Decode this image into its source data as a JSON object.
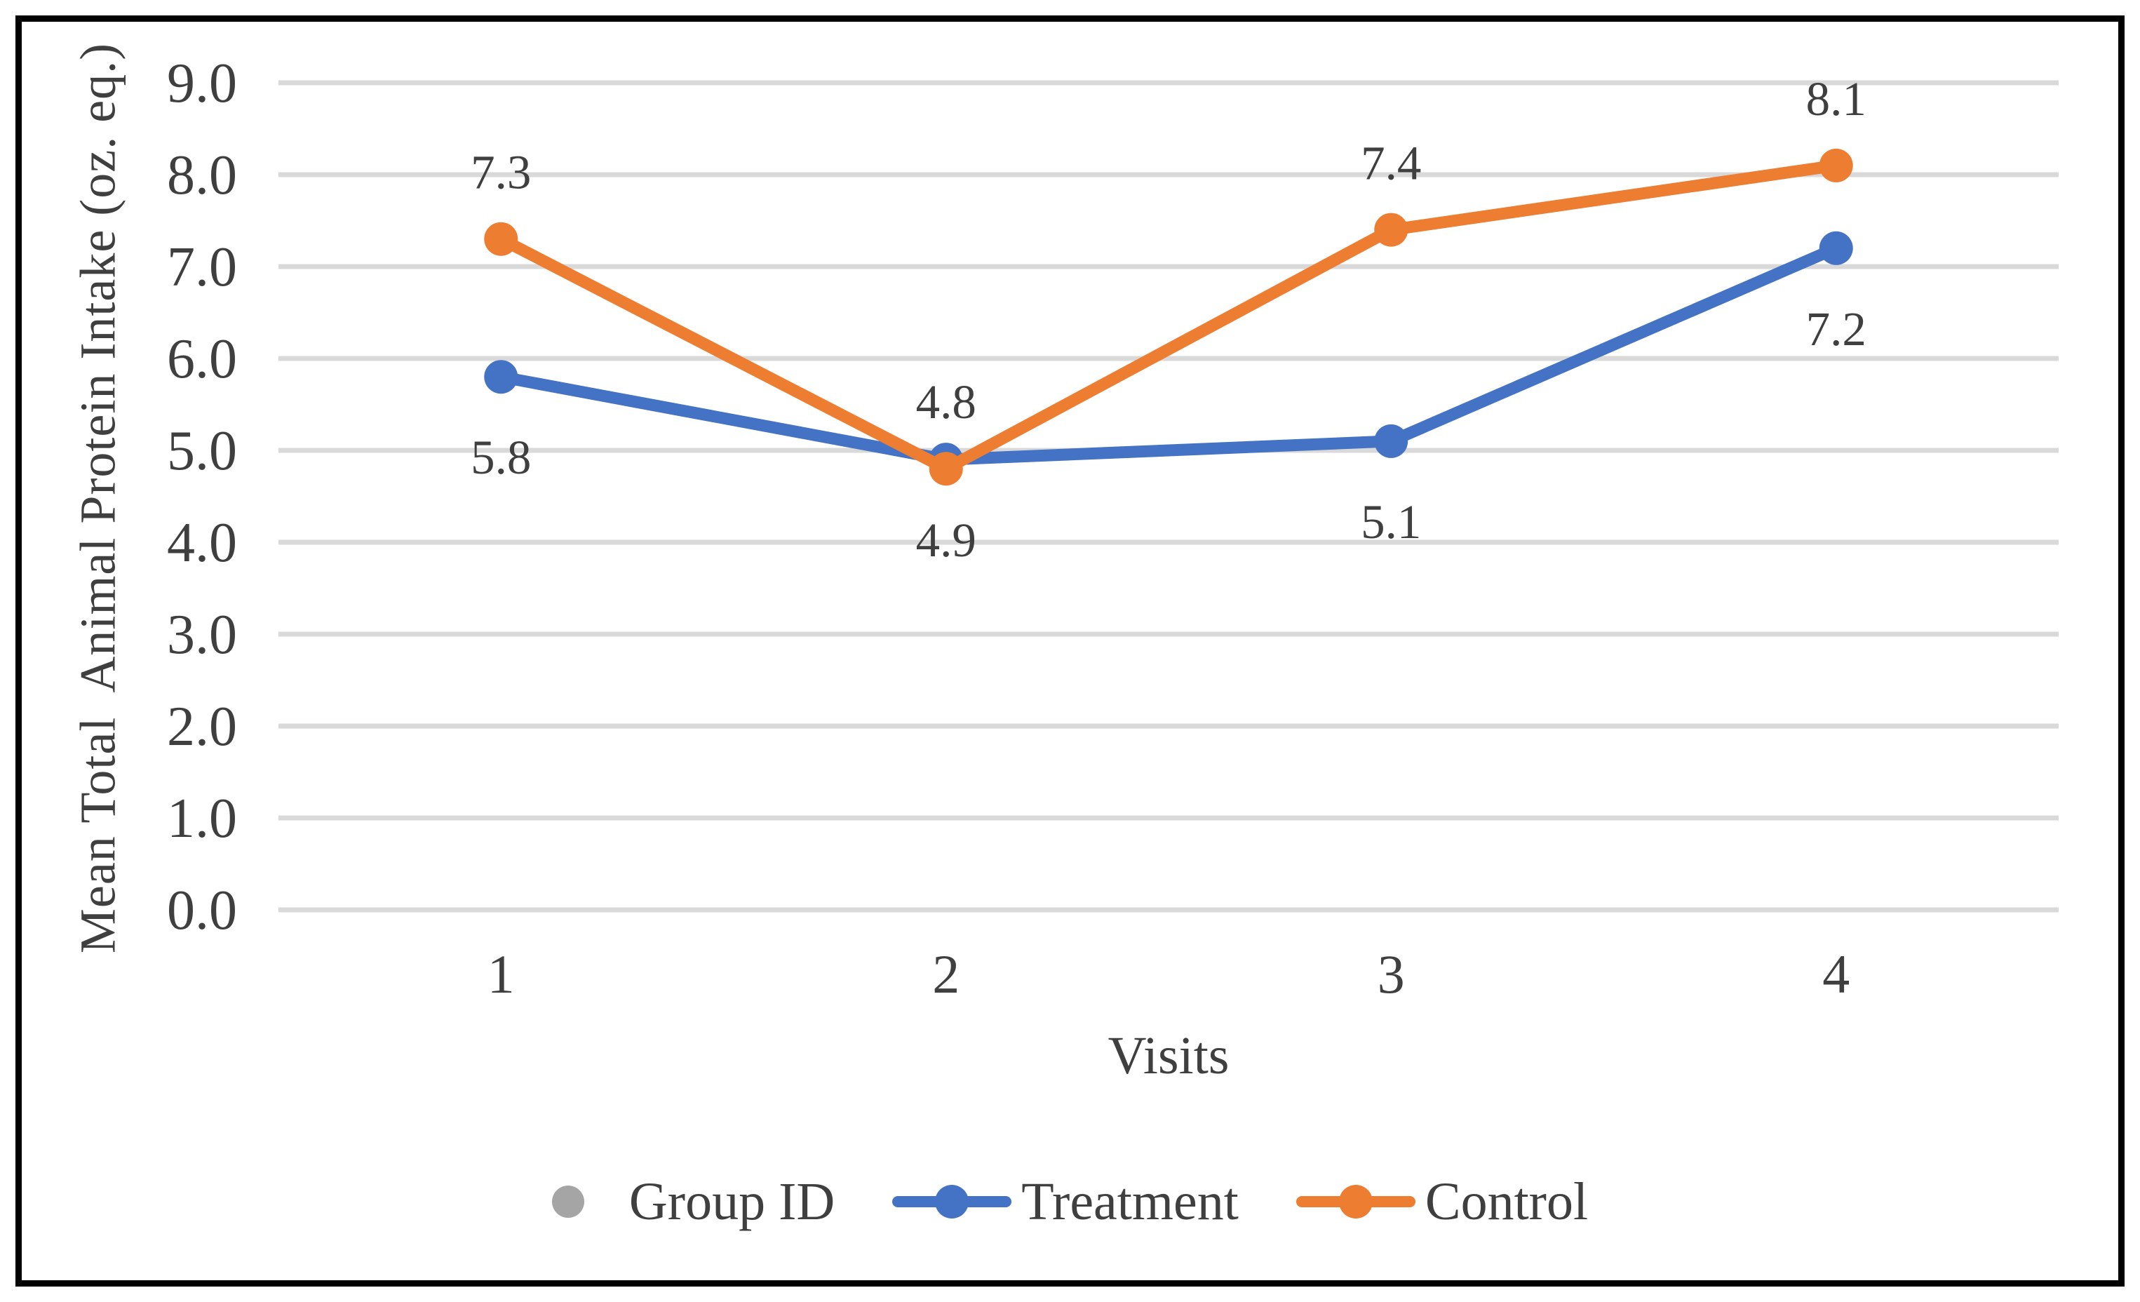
{
  "figure": {
    "background": "#FFFFFF",
    "border_color": "#000000"
  },
  "chart_data": {
    "type": "line",
    "title": "",
    "xlabel": "Visits",
    "ylabel": "Mean Total  Animal Protein Intake (oz. eq.)",
    "categories": [
      "1",
      "2",
      "3",
      "4"
    ],
    "yticks": [
      "9.0",
      "8.0",
      "7.0",
      "6.0",
      "5.0",
      "4.0",
      "3.0",
      "2.0",
      "1.0",
      "0.0"
    ],
    "ylim": [
      0,
      9
    ],
    "grid": true,
    "gridline_color": "#D9D9D9",
    "text_color": "#3F3F3F",
    "legend_position": "bottom",
    "series": [
      {
        "name": "Group ID",
        "color": "#A5A5A5",
        "marker": "dot",
        "line": false,
        "values": [],
        "labels": [],
        "label_position": "none"
      },
      {
        "name": "Treatment",
        "color": "#4472C4",
        "marker": "dot",
        "line": true,
        "values": [
          5.8,
          4.9,
          5.1,
          7.2
        ],
        "labels": [
          "5.8",
          "4.9",
          "5.1",
          "7.2"
        ],
        "label_position": "below"
      },
      {
        "name": "Control",
        "color": "#ED7D31",
        "marker": "dot",
        "line": true,
        "values": [
          7.3,
          4.8,
          7.4,
          8.1
        ],
        "labels": [
          "7.3",
          "4.8",
          "7.4",
          "8.1"
        ],
        "label_position": "above"
      }
    ]
  }
}
